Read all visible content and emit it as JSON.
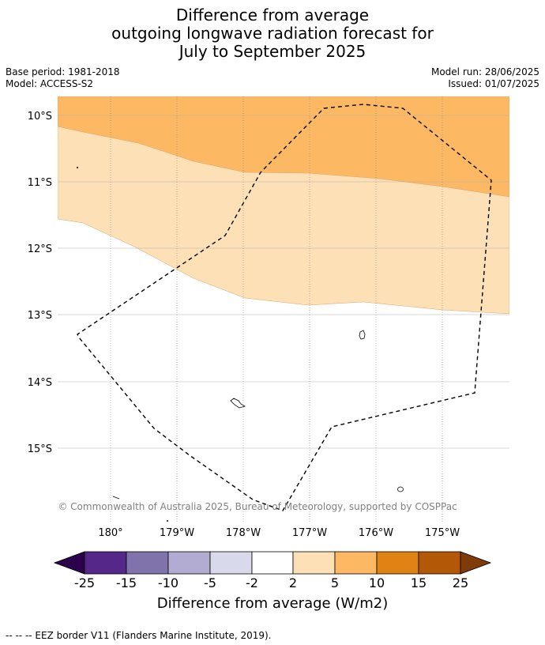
{
  "title": {
    "line1": "Difference from average",
    "line2": "outgoing longwave radiation forecast for",
    "line3": "July to September 2025"
  },
  "meta": {
    "base_period": "Base period: 1981-2018",
    "model": "Model: ACCESS-S2",
    "model_run": "Model run: 28/06/2025",
    "issued": "Issued: 01/07/2025"
  },
  "map": {
    "lat_labels": [
      "10°S",
      "11°S",
      "12°S",
      "13°S",
      "14°S",
      "15°S"
    ],
    "lon_labels": [
      "180°",
      "179°W",
      "178°W",
      "177°W",
      "176°W",
      "175°W"
    ],
    "copyright": "© Commonwealth of Australia 2025, Bureau of Meteorology, supported by COSPPac",
    "colors": {
      "band_5_10": "#fdb863",
      "band_2_5": "#fee0b6",
      "background": "#ffffff"
    }
  },
  "colorbar": {
    "labels": [
      "-25",
      "-15",
      "-10",
      "-5",
      "-2",
      "2",
      "5",
      "10",
      "15",
      "25"
    ],
    "colors": [
      "#2d004b",
      "#542788",
      "#8073ac",
      "#b2abd2",
      "#d8daeb",
      "#ffffff",
      "#fee0b6",
      "#fdb863",
      "#e08214",
      "#b35806",
      "#7f3b08"
    ],
    "title": "Difference from average (W/m2)"
  },
  "footer": {
    "legend": "--  --  -- EEZ border V11 (Flanders Marine Institute, 2019)."
  }
}
